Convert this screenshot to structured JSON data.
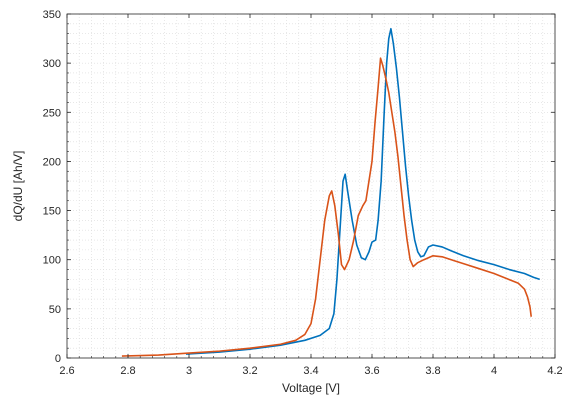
{
  "chart_data": {
    "type": "line",
    "title": "",
    "xlabel": "Voltage [V]",
    "ylabel": "dQ/dU [Ah/V]",
    "xlim": [
      2.6,
      4.2
    ],
    "ylim": [
      0,
      350
    ],
    "xticks": [
      2.6,
      2.8,
      3.0,
      3.2,
      3.4,
      3.6,
      3.8,
      4.0,
      4.2
    ],
    "xtick_labels": [
      "2.6",
      "2.8",
      "3",
      "3.2",
      "3.4",
      "3.6",
      "3.8",
      "4",
      "4.2"
    ],
    "yticks": [
      0,
      50,
      100,
      150,
      200,
      250,
      300,
      350
    ],
    "ytick_labels": [
      "0",
      "50",
      "100",
      "150",
      "200",
      "250",
      "300",
      "350"
    ],
    "grid": "minor dotted",
    "series": [
      {
        "color": "#0072BD",
        "points": [
          [
            2.99,
            4
          ],
          [
            3.1,
            6
          ],
          [
            3.2,
            9
          ],
          [
            3.3,
            13
          ],
          [
            3.38,
            18
          ],
          [
            3.43,
            23
          ],
          [
            3.46,
            30
          ],
          [
            3.475,
            45
          ],
          [
            3.485,
            80
          ],
          [
            3.495,
            130
          ],
          [
            3.505,
            180
          ],
          [
            3.512,
            187
          ],
          [
            3.52,
            170
          ],
          [
            3.535,
            140
          ],
          [
            3.55,
            115
          ],
          [
            3.565,
            102
          ],
          [
            3.578,
            100
          ],
          [
            3.59,
            108
          ],
          [
            3.6,
            118
          ],
          [
            3.612,
            120
          ],
          [
            3.62,
            140
          ],
          [
            3.63,
            180
          ],
          [
            3.64,
            250
          ],
          [
            3.648,
            300
          ],
          [
            3.655,
            325
          ],
          [
            3.662,
            335
          ],
          [
            3.67,
            320
          ],
          [
            3.68,
            295
          ],
          [
            3.69,
            265
          ],
          [
            3.7,
            230
          ],
          [
            3.71,
            195
          ],
          [
            3.72,
            165
          ],
          [
            3.73,
            140
          ],
          [
            3.74,
            120
          ],
          [
            3.75,
            108
          ],
          [
            3.76,
            103
          ],
          [
            3.77,
            104
          ],
          [
            3.785,
            113
          ],
          [
            3.8,
            115
          ],
          [
            3.83,
            113
          ],
          [
            3.86,
            109
          ],
          [
            3.9,
            104
          ],
          [
            3.95,
            99
          ],
          [
            4.0,
            95
          ],
          [
            4.05,
            90
          ],
          [
            4.1,
            86
          ],
          [
            4.13,
            82
          ],
          [
            4.15,
            80
          ]
        ]
      },
      {
        "color": "#D95319",
        "points": [
          [
            2.78,
            2
          ],
          [
            2.9,
            3
          ],
          [
            3.0,
            5
          ],
          [
            3.1,
            7
          ],
          [
            3.2,
            10
          ],
          [
            3.3,
            14
          ],
          [
            3.35,
            18
          ],
          [
            3.38,
            24
          ],
          [
            3.4,
            35
          ],
          [
            3.415,
            60
          ],
          [
            3.43,
            100
          ],
          [
            3.445,
            140
          ],
          [
            3.46,
            165
          ],
          [
            3.468,
            170
          ],
          [
            3.478,
            155
          ],
          [
            3.49,
            125
          ],
          [
            3.5,
            95
          ],
          [
            3.51,
            90
          ],
          [
            3.525,
            100
          ],
          [
            3.54,
            120
          ],
          [
            3.555,
            145
          ],
          [
            3.57,
            155
          ],
          [
            3.58,
            160
          ],
          [
            3.59,
            180
          ],
          [
            3.6,
            200
          ],
          [
            3.61,
            240
          ],
          [
            3.62,
            275
          ],
          [
            3.628,
            305
          ],
          [
            3.635,
            298
          ],
          [
            3.645,
            285
          ],
          [
            3.655,
            270
          ],
          [
            3.665,
            250
          ],
          [
            3.675,
            230
          ],
          [
            3.685,
            205
          ],
          [
            3.695,
            175
          ],
          [
            3.705,
            145
          ],
          [
            3.715,
            120
          ],
          [
            3.725,
            100
          ],
          [
            3.735,
            93
          ],
          [
            3.75,
            97
          ],
          [
            3.77,
            100
          ],
          [
            3.8,
            104
          ],
          [
            3.83,
            103
          ],
          [
            3.87,
            99
          ],
          [
            3.91,
            95
          ],
          [
            3.95,
            91
          ],
          [
            4.0,
            86
          ],
          [
            4.04,
            81
          ],
          [
            4.08,
            76
          ],
          [
            4.1,
            70
          ],
          [
            4.11,
            62
          ],
          [
            4.118,
            52
          ],
          [
            4.122,
            42
          ]
        ]
      }
    ]
  }
}
